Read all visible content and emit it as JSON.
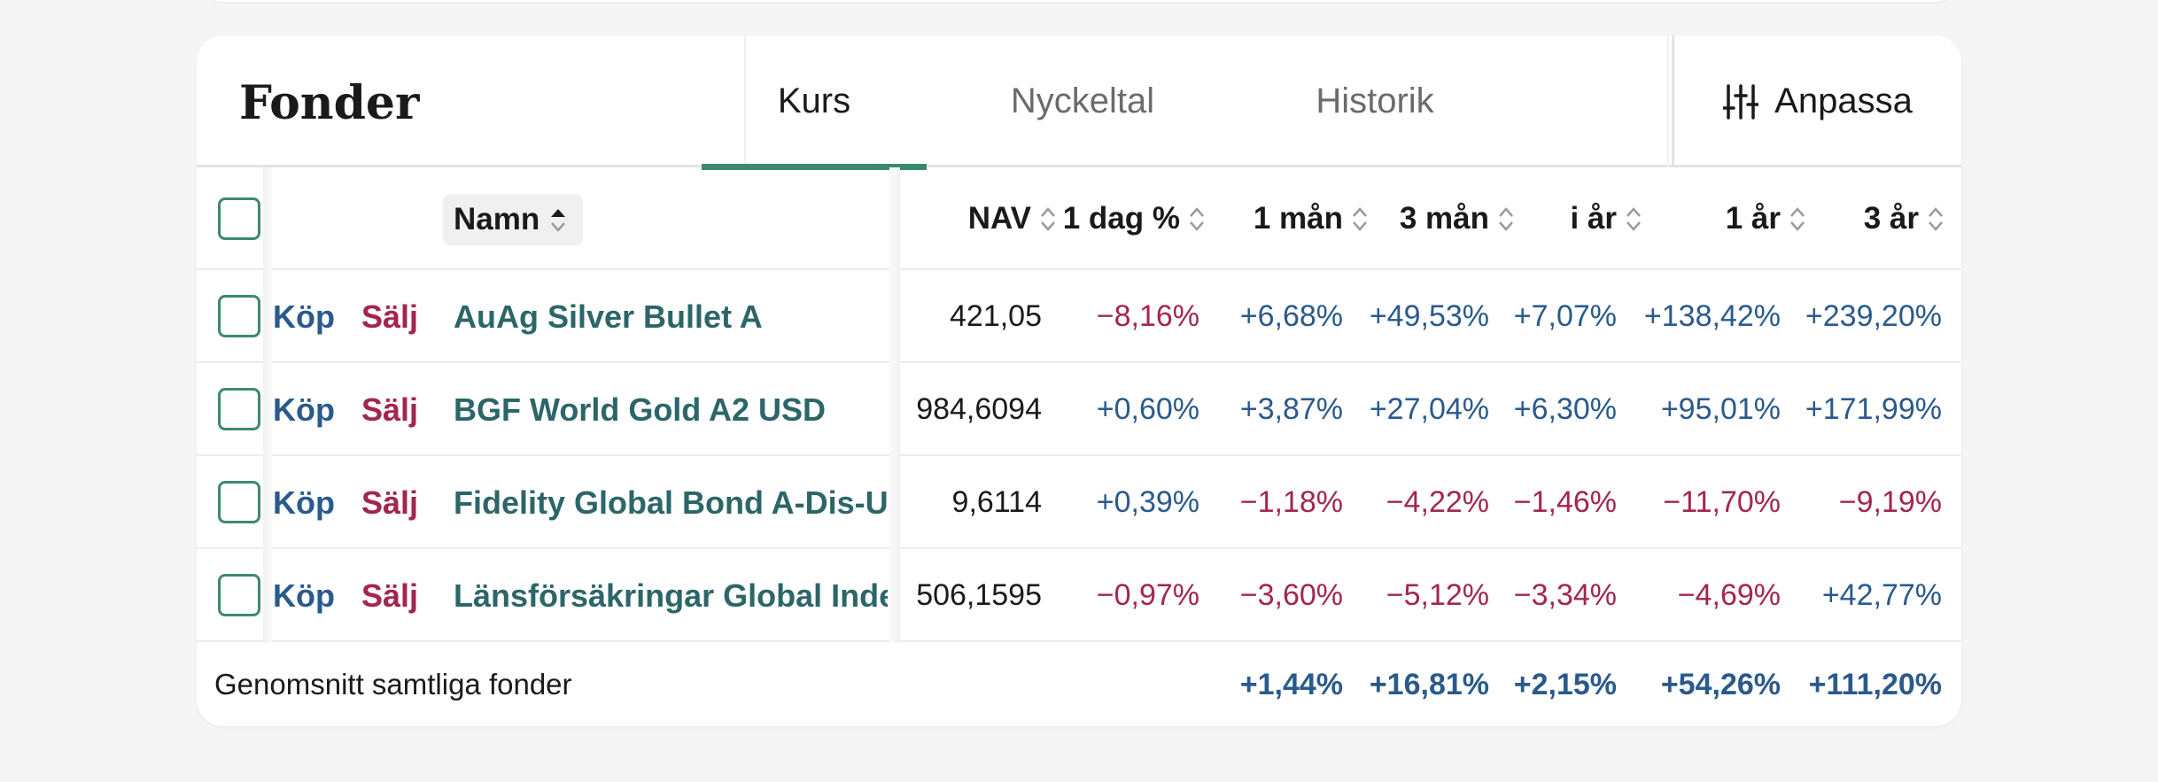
{
  "title": "Fonder",
  "tabs": [
    {
      "label": "Kurs",
      "active": true
    },
    {
      "label": "Nyckeltal",
      "active": false
    },
    {
      "label": "Historik",
      "active": false
    }
  ],
  "customize_label": "Anpassa",
  "columns": {
    "name": "Namn",
    "nav": "NAV",
    "day": "1 dag %",
    "m1": "1 mån",
    "m3": "3 mån",
    "ytd": "i år",
    "y1": "1 år",
    "y3": "3 år"
  },
  "buy_label": "Köp",
  "sell_label": "Sälj",
  "funds": [
    {
      "name": "AuAg Silver Bullet A",
      "nav": "421,05",
      "day": "−8,16%",
      "m1": "+6,68%",
      "m3": "+49,53%",
      "ytd": "+7,07%",
      "y1": "+138,42%",
      "y3": "+239,20%"
    },
    {
      "name": "BGF World Gold A2 USD",
      "nav": "984,6094",
      "day": "+0,60%",
      "m1": "+3,87%",
      "m3": "+27,04%",
      "ytd": "+6,30%",
      "y1": "+95,01%",
      "y3": "+171,99%"
    },
    {
      "name": "Fidelity Global Bond A-Dis-USD",
      "nav": "9,6114",
      "day": "+0,39%",
      "m1": "−1,18%",
      "m3": "−4,22%",
      "ytd": "−1,46%",
      "y1": "−11,70%",
      "y3": "−9,19%"
    },
    {
      "name": "Länsförsäkringar Global Index",
      "nav": "506,1595",
      "day": "−0,97%",
      "m1": "−3,60%",
      "m3": "−5,12%",
      "ytd": "−3,34%",
      "y1": "−4,69%",
      "y3": "+42,77%"
    }
  ],
  "footer": {
    "label": "Genomsnitt samtliga fonder",
    "m1": "+1,44%",
    "m3": "+16,81%",
    "ytd": "+2,15%",
    "y1": "+54,26%",
    "y3": "+111,20%"
  },
  "colors": {
    "positive": "#2a5a8c",
    "negative": "#a3264e",
    "accent": "#3c8a6e",
    "fund_name": "#2c6668"
  }
}
